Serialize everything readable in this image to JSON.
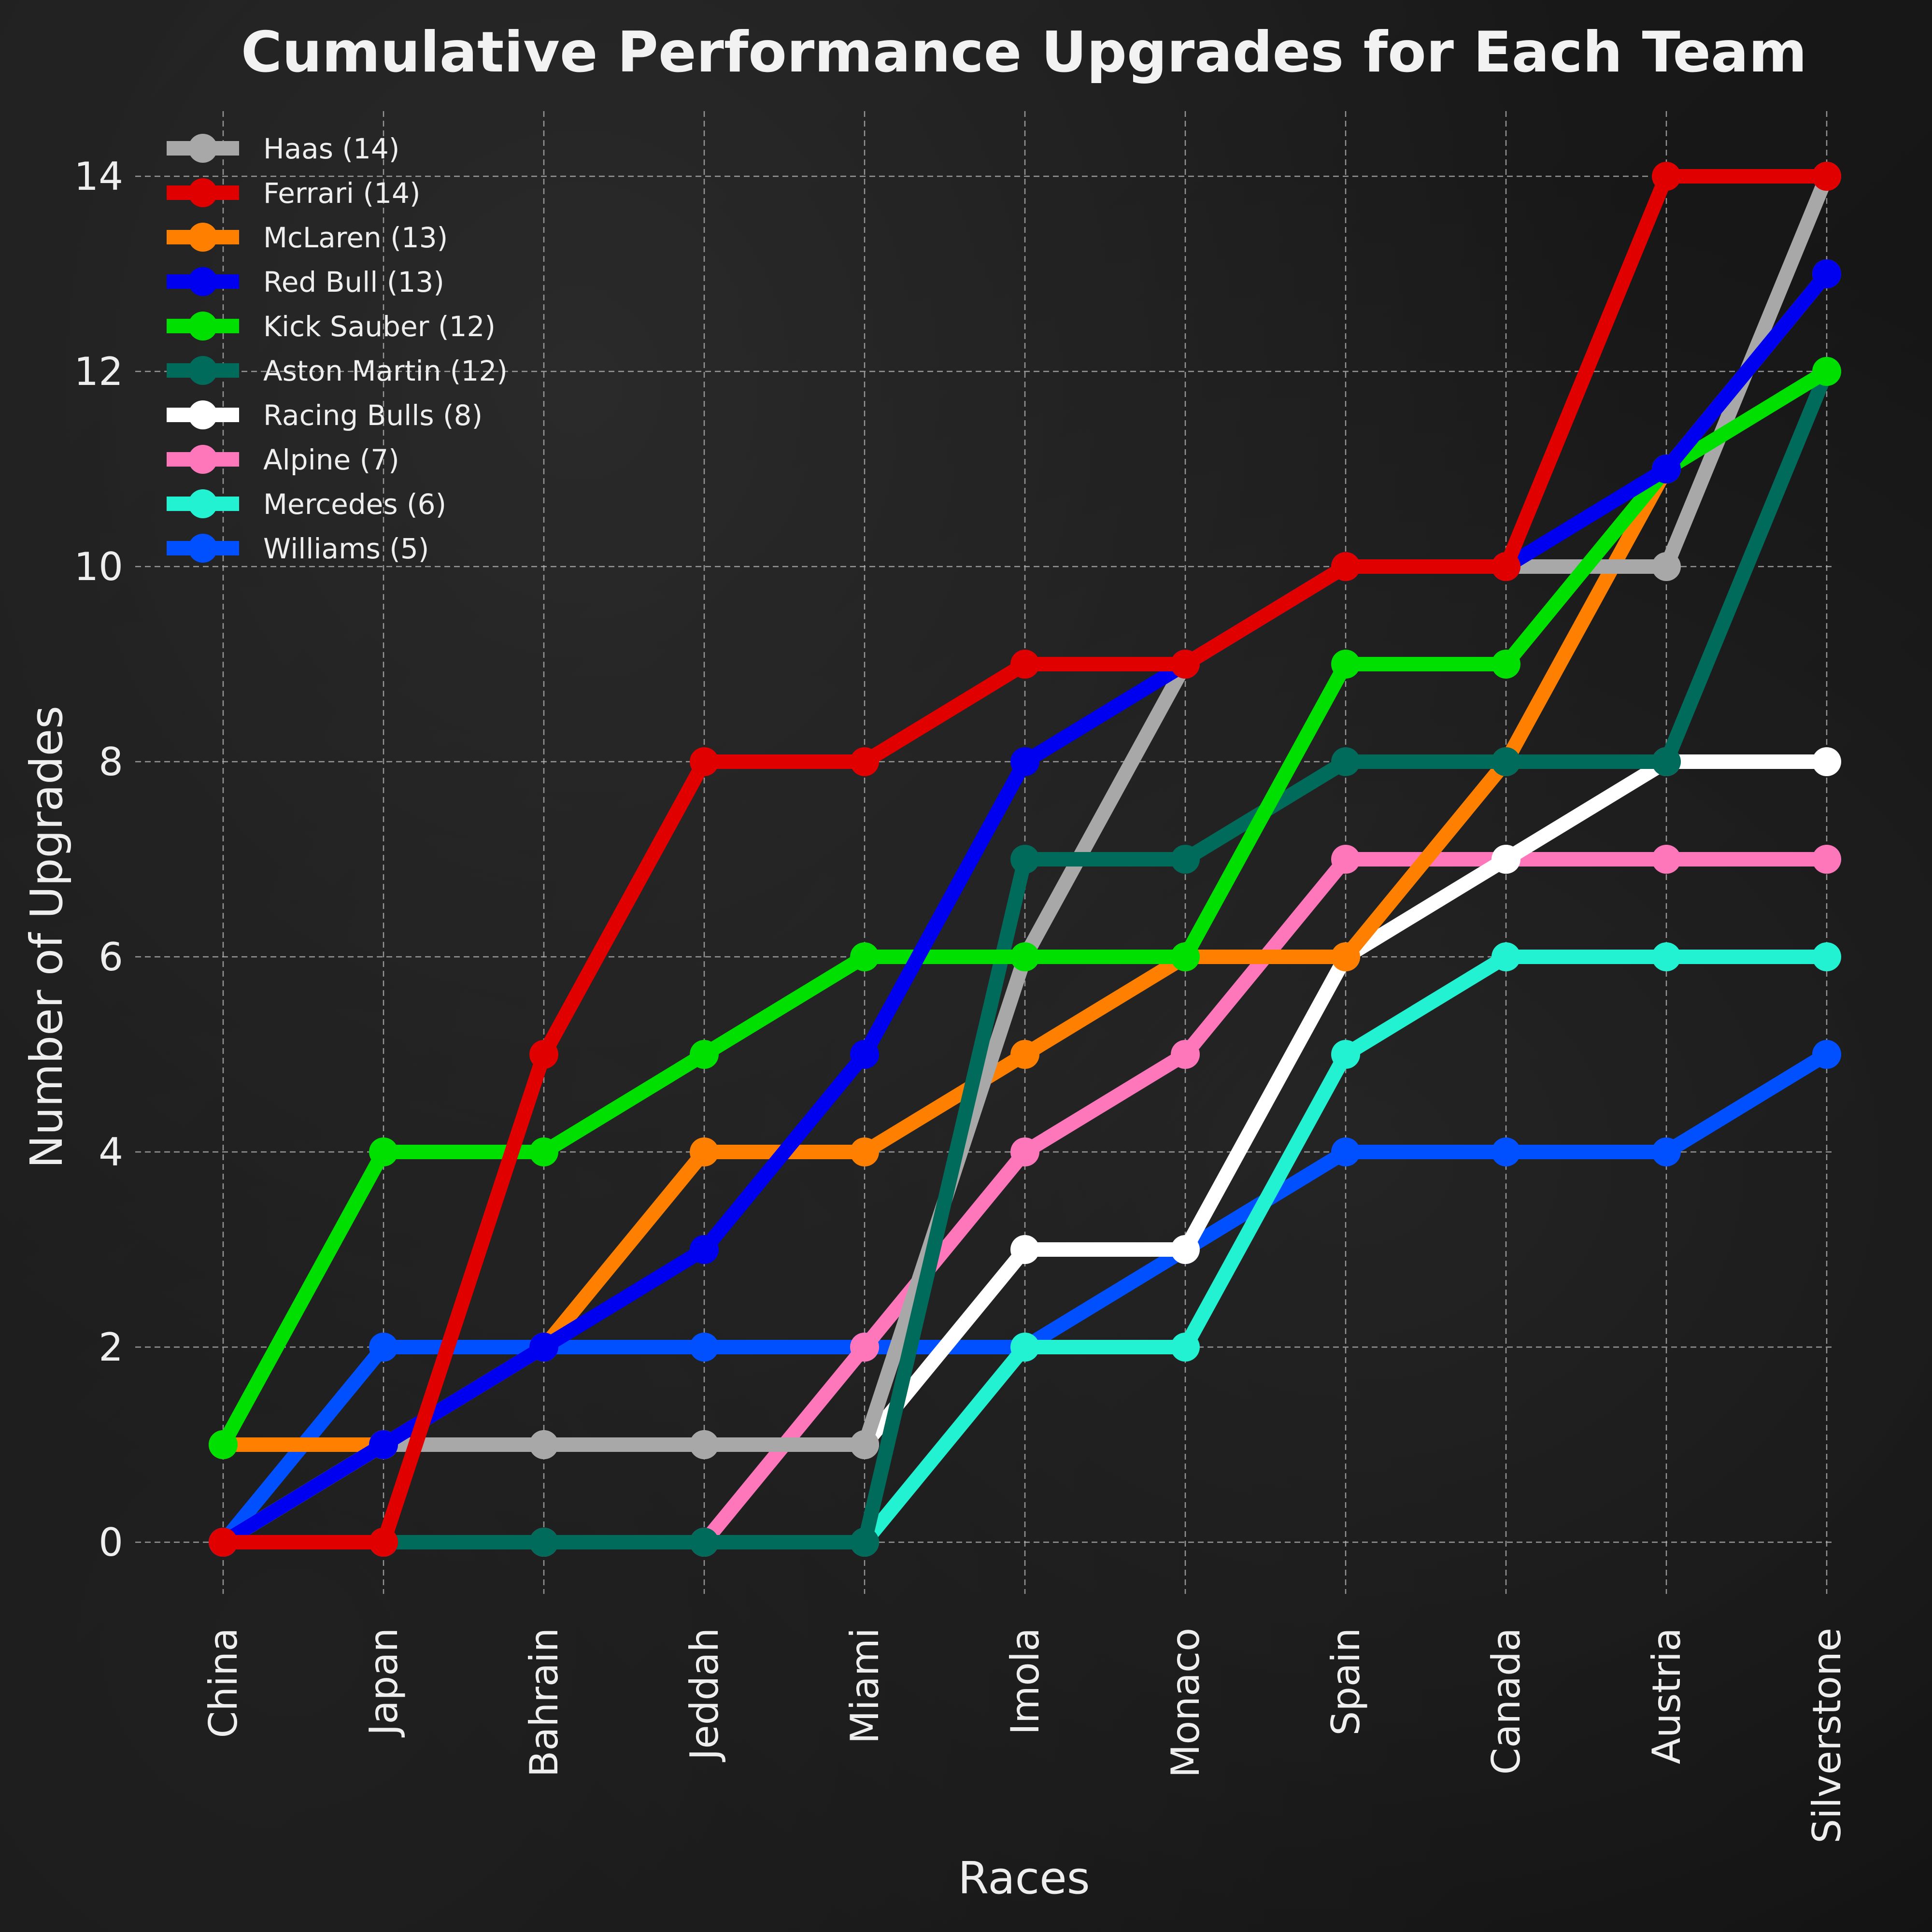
{
  "chart_data": {
    "type": "line",
    "title": "Cumulative Performance Upgrades for Each Team",
    "xlabel": "Races",
    "ylabel": "Number of Upgrades",
    "categories": [
      "China",
      "Japan",
      "Bahrain",
      "Jeddah",
      "Miami",
      "Imola",
      "Monaco",
      "Spain",
      "Canada",
      "Austria",
      "Silverstone"
    ],
    "ylim": [
      -0.5,
      14.5
    ],
    "yticks": [
      0,
      2,
      4,
      6,
      8,
      10,
      12,
      14
    ],
    "grid": true,
    "legend_position": "top-left",
    "series": [
      {
        "name": "Haas (14)",
        "color": "#a8a8a8",
        "values": [
          0,
          1,
          1,
          1,
          1,
          6,
          9,
          10,
          10,
          10,
          14
        ]
      },
      {
        "name": "Ferrari (14)",
        "color": "#e00000",
        "values": [
          0,
          0,
          5,
          8,
          8,
          9,
          9,
          10,
          10,
          14,
          14
        ]
      },
      {
        "name": "McLaren (13)",
        "color": "#ff8000",
        "values": [
          1,
          1,
          2,
          4,
          4,
          5,
          6,
          6,
          8,
          11,
          13
        ]
      },
      {
        "name": "Red Bull (13)",
        "color": "#0000f0",
        "values": [
          0,
          1,
          2,
          3,
          5,
          8,
          9,
          10,
          10,
          11,
          13
        ]
      },
      {
        "name": "Kick Sauber (12)",
        "color": "#00e000",
        "values": [
          1,
          4,
          4,
          5,
          6,
          6,
          6,
          9,
          9,
          11,
          12
        ]
      },
      {
        "name": "Aston Martin (12)",
        "color": "#006b5b",
        "values": [
          0,
          0,
          0,
          0,
          0,
          7,
          7,
          8,
          8,
          8,
          12
        ]
      },
      {
        "name": "Racing Bulls (8)",
        "color": "#ffffff",
        "values": [
          0,
          1,
          1,
          1,
          1,
          3,
          3,
          6,
          7,
          8,
          8
        ]
      },
      {
        "name": "Alpine (7)",
        "color": "#ff77bb",
        "values": [
          0,
          0,
          0,
          0,
          2,
          4,
          5,
          7,
          7,
          7,
          7
        ]
      },
      {
        "name": "Mercedes (6)",
        "color": "#22f2d2",
        "values": [
          0,
          0,
          0,
          0,
          0,
          2,
          2,
          5,
          6,
          6,
          6
        ]
      },
      {
        "name": "Williams (5)",
        "color": "#0050ff",
        "values": [
          0,
          2,
          2,
          2,
          2,
          2,
          3,
          4,
          4,
          4,
          5
        ]
      }
    ],
    "draw_order": [
      "Williams (5)",
      "Mercedes (6)",
      "Alpine (7)",
      "Racing Bulls (8)",
      "McLaren (13)",
      "Haas (14)",
      "Aston Martin (12)",
      "Kick Sauber (12)",
      "Red Bull (13)",
      "Ferrari (14)"
    ]
  }
}
